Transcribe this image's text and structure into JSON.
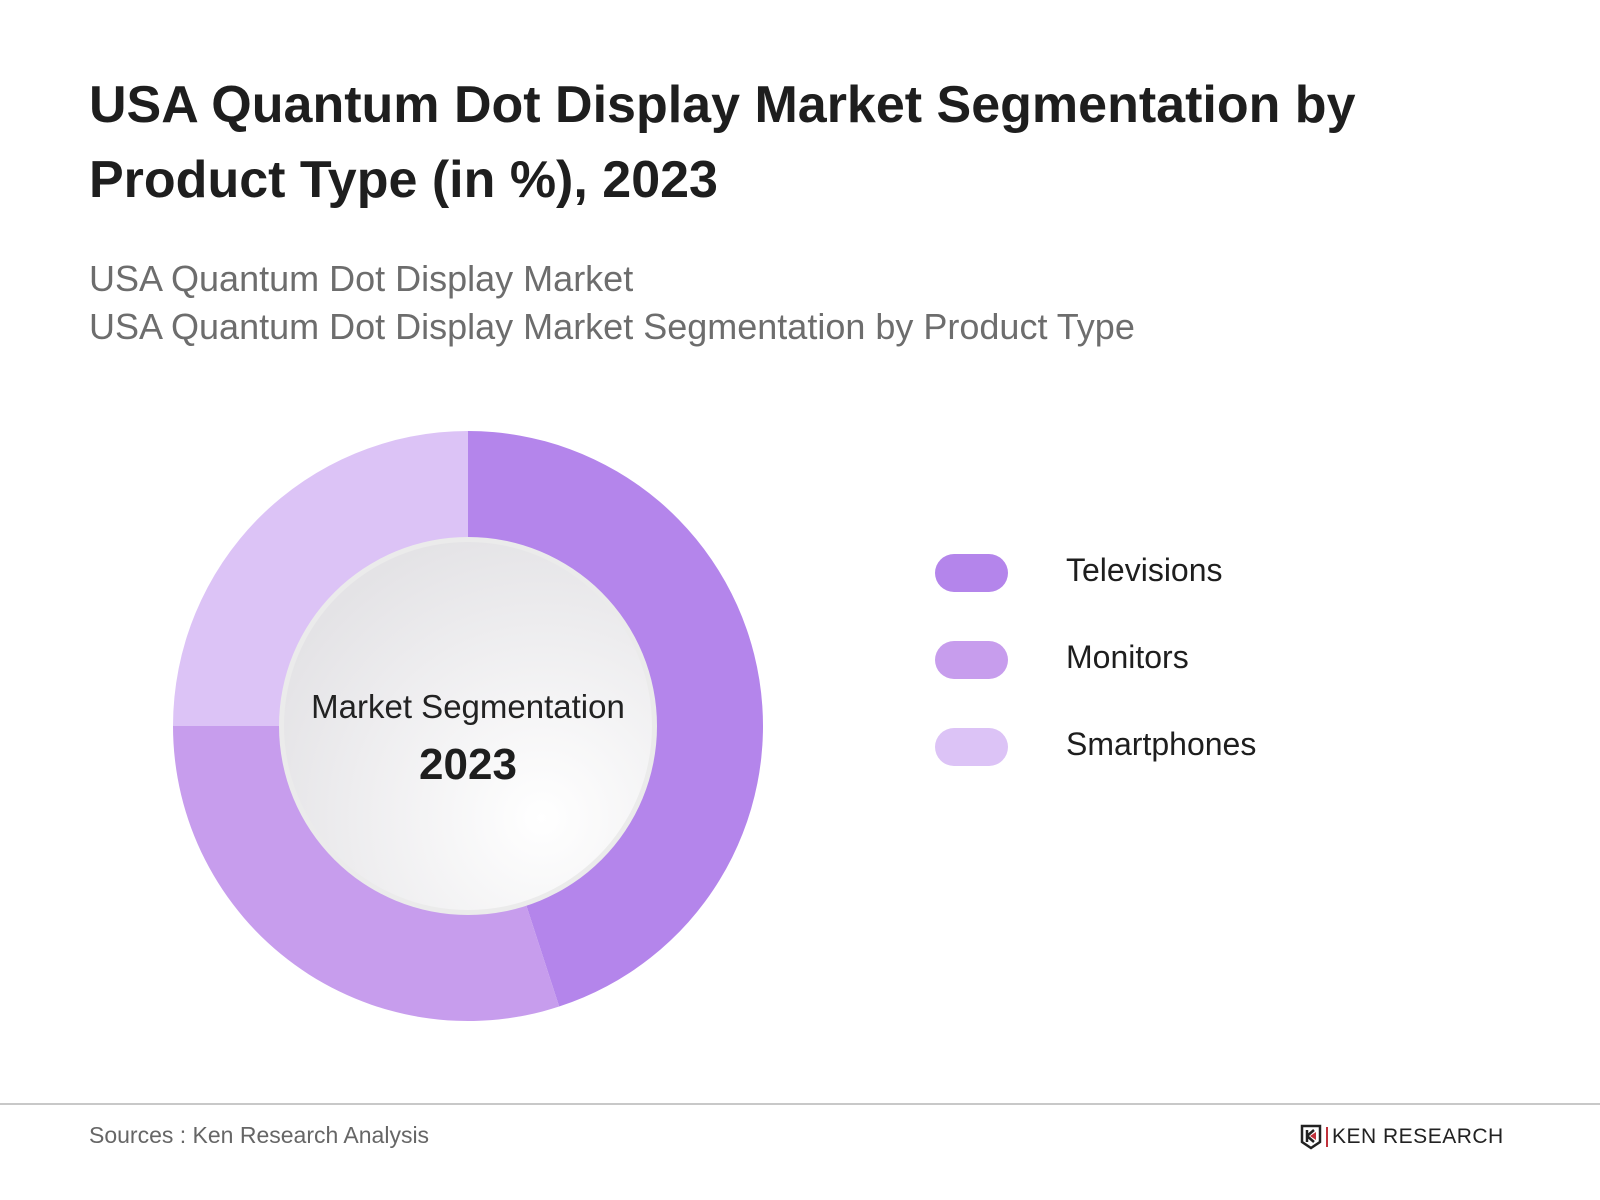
{
  "title": "USA Quantum Dot Display Market Segmentation by Product Type (in %), 2023",
  "subtitle_1": "USA Quantum Dot Display Market",
  "subtitle_2": "USA Quantum Dot Display Market Segmentation by Product Type",
  "source": "Sources : Ken Research Analysis",
  "logo_text": "KEN RESEARCH",
  "chart_data": {
    "type": "pie",
    "variant": "donut",
    "title": "USA Quantum Dot Display Market Segmentation by Product Type (in %), 2023",
    "center_label": "Market Segmentation",
    "center_year": "2023",
    "categories": [
      "Televisions",
      "Monitors",
      "Smartphones"
    ],
    "values": [
      45,
      30,
      25
    ],
    "unit": "%",
    "colors": [
      "#b485eb",
      "#c79ded",
      "#dcc3f6"
    ],
    "legend_position": "right"
  }
}
